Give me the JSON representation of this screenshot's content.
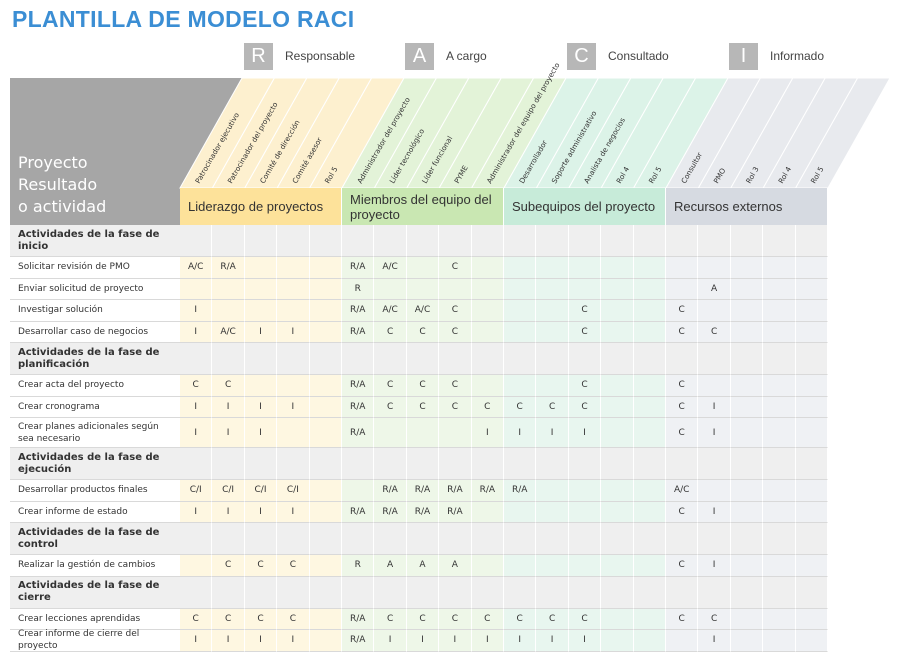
{
  "title": "PLANTILLA DE MODELO RACI",
  "legend": [
    {
      "letter": "R",
      "label": "Responsable"
    },
    {
      "letter": "A",
      "label": "A cargo"
    },
    {
      "letter": "C",
      "label": "Consultado"
    },
    {
      "letter": "I",
      "label": "Informado"
    }
  ],
  "table": {
    "corner": [
      "Proyecto",
      "Resultado",
      "o actividad"
    ],
    "groups": [
      {
        "name": "Liderazgo de proyectos",
        "roles": [
          "Patrocinador ejecutivo",
          "Patrocinador del proyecto",
          "Comité de dirección",
          "Comité asesor",
          "Rol 5"
        ]
      },
      {
        "name": "Miembros del equipo del proyecto",
        "roles": [
          "Administrador del proyecto",
          "Líder tecnológico",
          "Líder funcional",
          "PYME",
          "Administrador del equipo del proyecto"
        ]
      },
      {
        "name": "Subequipos del proyecto",
        "roles": [
          "Desarrollador",
          "Soporte administrativo",
          "Analista de negocios",
          "Rol 4",
          "Rol 5"
        ]
      },
      {
        "name": "Recursos externos",
        "roles": [
          "Consultor",
          "PMO",
          "Rol 3",
          "Rol 4",
          "Rol 5"
        ]
      }
    ],
    "rows": [
      {
        "label": "Actividades de la fase de inicio"
      },
      {
        "label": "Solicitar revisión de PMO",
        "cells": [
          "A/C",
          "R/A",
          null,
          null,
          null,
          "R/A",
          "A/C",
          null,
          "C",
          null,
          null,
          null,
          null,
          null,
          null,
          null,
          null,
          null,
          null,
          null
        ]
      },
      {
        "label": "Enviar solicitud de proyecto",
        "cells": [
          null,
          null,
          null,
          null,
          null,
          "R",
          null,
          null,
          null,
          null,
          null,
          null,
          null,
          null,
          null,
          null,
          "A",
          null,
          null,
          null
        ]
      },
      {
        "label": "Investigar solución",
        "cells": [
          "I",
          null,
          null,
          null,
          null,
          "R/A",
          "A/C",
          "A/C",
          "C",
          null,
          null,
          null,
          "C",
          null,
          null,
          "C",
          null,
          null,
          null,
          null
        ]
      },
      {
        "label": "Desarrollar caso de negocios",
        "cells": [
          "I",
          "A/C",
          "I",
          "I",
          null,
          "R/A",
          "C",
          "C",
          "C",
          null,
          null,
          null,
          "C",
          null,
          null,
          "C",
          "C",
          null,
          null,
          null
        ]
      },
      {
        "label": "Actividades de la fase de planificación"
      },
      {
        "label": "Crear acta del proyecto",
        "cells": [
          "C",
          "C",
          null,
          null,
          null,
          "R/A",
          "C",
          "C",
          "C",
          null,
          null,
          null,
          "C",
          null,
          null,
          "C",
          null,
          null,
          null,
          null
        ]
      },
      {
        "label": "Crear cronograma",
        "cells": [
          "I",
          "I",
          "I",
          "I",
          null,
          "R/A",
          "C",
          "C",
          "C",
          "C",
          "C",
          "C",
          "C",
          null,
          null,
          "C",
          "I",
          null,
          null,
          null
        ]
      },
      {
        "label": "Crear planes adicionales según sea necesario",
        "cells": [
          "I",
          "I",
          "I",
          null,
          null,
          "R/A",
          null,
          null,
          null,
          "I",
          "I",
          "I",
          "I",
          null,
          null,
          "C",
          "I",
          null,
          null,
          null
        ]
      },
      {
        "label": "Actividades de la fase de ejecución"
      },
      {
        "label": "Desarrollar productos finales",
        "cells": [
          "C/I",
          "C/I",
          "C/I",
          "C/I",
          null,
          null,
          "R/A",
          "R/A",
          "R/A",
          "R/A",
          "R/A",
          null,
          null,
          null,
          null,
          "A/C",
          null,
          null,
          null,
          null
        ]
      },
      {
        "label": "Crear informe de estado",
        "cells": [
          "I",
          "I",
          "I",
          "I",
          null,
          "R/A",
          "R/A",
          "R/A",
          "R/A",
          null,
          null,
          null,
          null,
          null,
          null,
          "C",
          "I",
          null,
          null,
          null
        ]
      },
      {
        "label": "Actividades de la fase de control"
      },
      {
        "label": "Realizar la gestión de cambios",
        "cells": [
          null,
          "C",
          "C",
          "C",
          null,
          "R",
          "A",
          "A",
          "A",
          null,
          null,
          null,
          null,
          null,
          null,
          "C",
          "I",
          null,
          null,
          null
        ]
      },
      {
        "label": "Actividades de la fase de cierre"
      },
      {
        "label": "Crear lecciones aprendidas",
        "cells": [
          "C",
          "C",
          "C",
          "C",
          null,
          "R/A",
          "C",
          "C",
          "C",
          "C",
          "C",
          "C",
          "C",
          null,
          null,
          "C",
          "C",
          null,
          null,
          null
        ]
      },
      {
        "label": "Crear informe de cierre del proyecto",
        "cells": [
          "I",
          "I",
          "I",
          "I",
          null,
          "R/A",
          "I",
          "I",
          "I",
          "I",
          "I",
          "I",
          "I",
          null,
          null,
          null,
          "I",
          null,
          null,
          null
        ]
      }
    ]
  }
}
